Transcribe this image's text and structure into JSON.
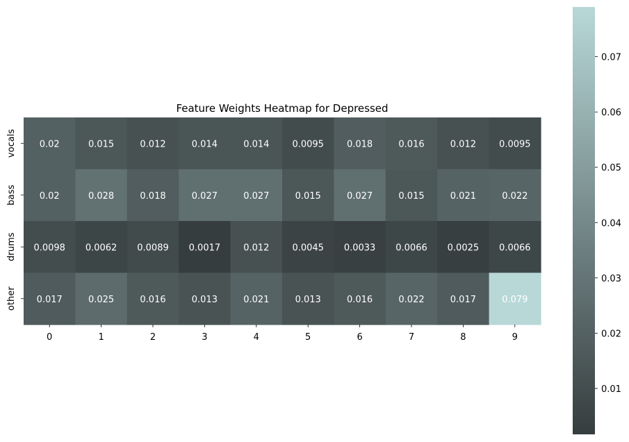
{
  "chart_data": {
    "type": "heatmap",
    "title": "Feature Weights Heatmap for Depressed",
    "xlabel": "",
    "ylabel": "",
    "x_categories": [
      "0",
      "1",
      "2",
      "3",
      "4",
      "5",
      "6",
      "7",
      "8",
      "9"
    ],
    "y_categories": [
      "vocals",
      "bass",
      "drums",
      "other"
    ],
    "values": [
      [
        0.02,
        0.015,
        0.012,
        0.014,
        0.014,
        0.0095,
        0.018,
        0.016,
        0.012,
        0.0095
      ],
      [
        0.02,
        0.028,
        0.018,
        0.027,
        0.027,
        0.015,
        0.027,
        0.015,
        0.021,
        0.022
      ],
      [
        0.0098,
        0.0062,
        0.0089,
        0.0017,
        0.012,
        0.0045,
        0.0033,
        0.0066,
        0.0025,
        0.0066
      ],
      [
        0.017,
        0.025,
        0.016,
        0.013,
        0.021,
        0.013,
        0.016,
        0.022,
        0.017,
        0.079
      ]
    ],
    "value_labels": [
      [
        "0.02",
        "0.015",
        "0.012",
        "0.014",
        "0.014",
        "0.0095",
        "0.018",
        "0.016",
        "0.012",
        "0.0095"
      ],
      [
        "0.02",
        "0.028",
        "0.018",
        "0.027",
        "0.027",
        "0.015",
        "0.027",
        "0.015",
        "0.021",
        "0.022"
      ],
      [
        "0.0098",
        "0.0062",
        "0.0089",
        "0.0017",
        "0.012",
        "0.0045",
        "0.0033",
        "0.0066",
        "0.0025",
        "0.0066"
      ],
      [
        "0.017",
        "0.025",
        "0.016",
        "0.013",
        "0.021",
        "0.013",
        "0.016",
        "0.022",
        "0.017",
        "0.079"
      ]
    ],
    "colorbar": {
      "min": 0.0017,
      "max": 0.079,
      "ticks": [
        0.01,
        0.02,
        0.03,
        0.04,
        0.05,
        0.06,
        0.07
      ],
      "tick_labels": [
        "0.01",
        "0.02",
        "0.03",
        "0.04",
        "0.05",
        "0.06",
        "0.07"
      ],
      "color_low": "#363d3e",
      "color_mid": "#76898a",
      "color_high": "#b8d8d8"
    },
    "annotation_color": "#ffffff",
    "grid": false,
    "legend": "colorbar-right"
  }
}
